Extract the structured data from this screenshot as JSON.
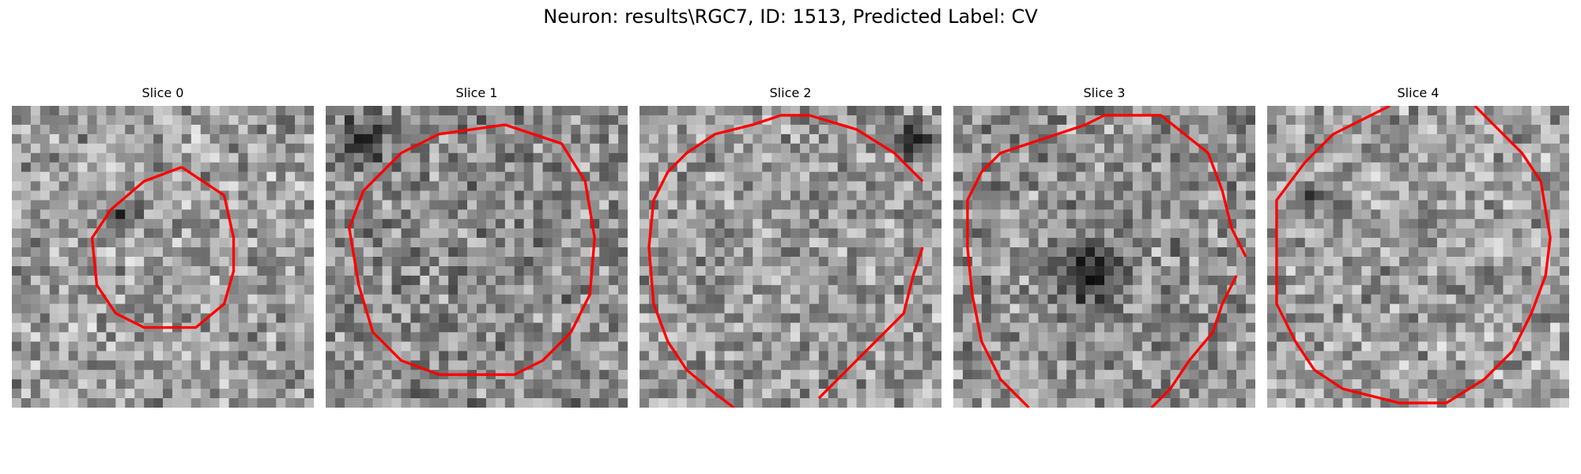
{
  "figure": {
    "title": "Neuron: results\\RGC7, ID: 1513, Predicted Label: CV"
  },
  "panels": [
    {
      "title": "Slice 0",
      "seed": 11,
      "brightness": 0.62,
      "dark_blob": [
        0.35,
        0.35,
        0.08
      ]
    },
    {
      "title": "Slice 1",
      "seed": 27,
      "brightness": 0.55,
      "dark_blob": [
        0.1,
        0.1,
        0.12
      ]
    },
    {
      "title": "Slice 2",
      "seed": 43,
      "brightness": 0.6,
      "dark_blob": [
        0.9,
        0.1,
        0.1
      ]
    },
    {
      "title": "Slice 3",
      "seed": 59,
      "brightness": 0.58,
      "dark_blob": [
        0.45,
        0.55,
        0.18
      ]
    },
    {
      "title": "Slice 4",
      "seed": 71,
      "brightness": 0.62,
      "dark_blob": [
        0.12,
        0.3,
        0.1
      ]
    }
  ],
  "contour_color": "#ff0000",
  "colormap": "gray",
  "grid_size": 32
}
